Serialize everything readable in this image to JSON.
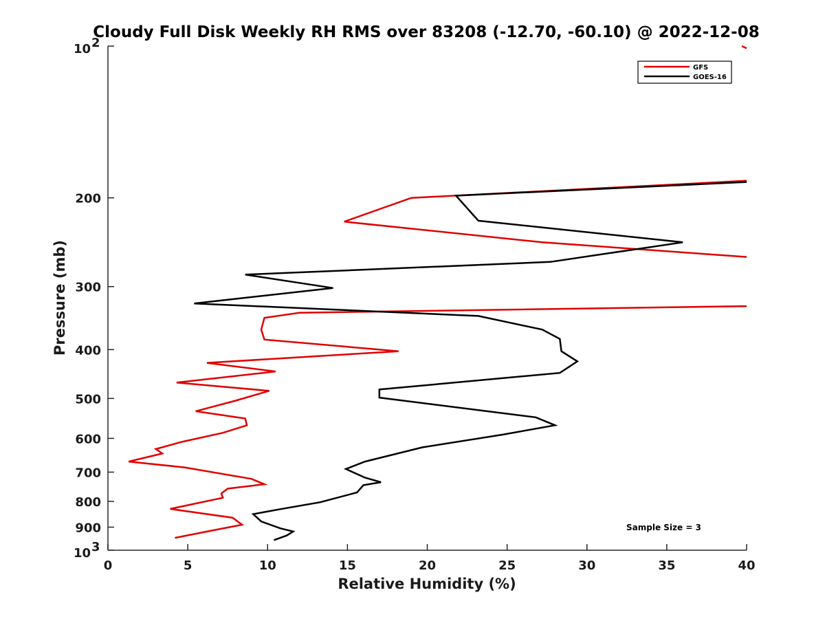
{
  "chart_data": {
    "type": "line",
    "title": "Cloudy Full Disk Weekly RH RMS over 83208 (-12.70, -60.10) @ 2022-12-08",
    "xlabel": "Relative Humidity (%)",
    "ylabel": "Pressure (mb)",
    "xlim": [
      0,
      40
    ],
    "ylim": [
      100,
      1000
    ],
    "y_scale": "log",
    "y_reversed": true,
    "x_ticks": [
      0,
      5,
      10,
      15,
      20,
      25,
      30,
      35,
      40
    ],
    "x_tick_labels": [
      "0",
      "5",
      "10",
      "15",
      "20",
      "25",
      "30",
      "35",
      "40"
    ],
    "y_ticks": [
      200,
      300,
      400,
      500,
      600,
      700,
      800,
      900
    ],
    "y_tick_labels": [
      "200",
      "300",
      "400",
      "500",
      "600",
      "700",
      "800",
      "900"
    ],
    "y_limit_labels": {
      "top_base": "10",
      "top_exp": "2",
      "bottom_base": "10",
      "bottom_exp": "3"
    },
    "legend_location": "top-right",
    "annotation": "Sample Size = 3",
    "series": [
      {
        "name": "GFS",
        "color": "#e00000",
        "points": [
          [
            39.7,
            100
          ],
          [
            40.0,
            101
          ],
          null,
          [
            40.0,
            185
          ],
          [
            19.0,
            200
          ],
          [
            14.8,
            223
          ],
          [
            27.2,
            245
          ],
          [
            40.0,
            262
          ],
          null,
          [
            40.0,
            328
          ],
          [
            12.0,
            338
          ],
          [
            9.8,
            346
          ],
          [
            9.6,
            365
          ],
          [
            9.8,
            382
          ],
          [
            18.2,
            403
          ],
          [
            6.2,
            425
          ],
          [
            10.5,
            442
          ],
          [
            4.3,
            465
          ],
          [
            10.1,
            483
          ],
          [
            8.0,
            505
          ],
          [
            5.5,
            530
          ],
          [
            8.6,
            548
          ],
          [
            8.7,
            565
          ],
          [
            7.2,
            585
          ],
          [
            4.6,
            610
          ],
          [
            3.0,
            630
          ],
          [
            3.4,
            643
          ],
          [
            1.3,
            667
          ],
          [
            4.8,
            685
          ],
          [
            9.0,
            722
          ],
          [
            9.8,
            740
          ],
          [
            7.5,
            755
          ],
          [
            7.1,
            772
          ],
          [
            7.2,
            787
          ],
          [
            3.9,
            828
          ],
          [
            7.8,
            862
          ],
          [
            8.4,
            890
          ],
          [
            6.6,
            913
          ],
          [
            4.2,
            945
          ]
        ]
      },
      {
        "name": "GOES-16",
        "color": "#000000",
        "points": [
          [
            40.0,
            186
          ],
          [
            21.8,
            198
          ],
          [
            23.2,
            222
          ],
          [
            36.0,
            245
          ],
          [
            27.7,
            268
          ],
          [
            8.6,
            284
          ],
          [
            14.1,
            302
          ],
          [
            5.4,
            324
          ],
          [
            23.2,
            343
          ],
          [
            27.2,
            365
          ],
          [
            28.3,
            381
          ],
          [
            28.4,
            403
          ],
          [
            29.4,
            422
          ],
          [
            28.3,
            445
          ],
          [
            17.0,
            480
          ],
          [
            17.0,
            498
          ],
          [
            26.8,
            545
          ],
          [
            28.0,
            565
          ],
          [
            24.7,
            590
          ],
          [
            19.7,
            625
          ],
          [
            16.1,
            667
          ],
          [
            14.9,
            690
          ],
          [
            16.1,
            718
          ],
          [
            17.1,
            733
          ],
          [
            16.0,
            743
          ],
          [
            15.6,
            768
          ],
          [
            13.3,
            803
          ],
          [
            10.7,
            830
          ],
          [
            9.1,
            848
          ],
          [
            9.6,
            877
          ],
          [
            10.8,
            905
          ],
          [
            11.6,
            918
          ],
          [
            11.2,
            935
          ],
          [
            10.4,
            955
          ]
        ]
      }
    ]
  }
}
